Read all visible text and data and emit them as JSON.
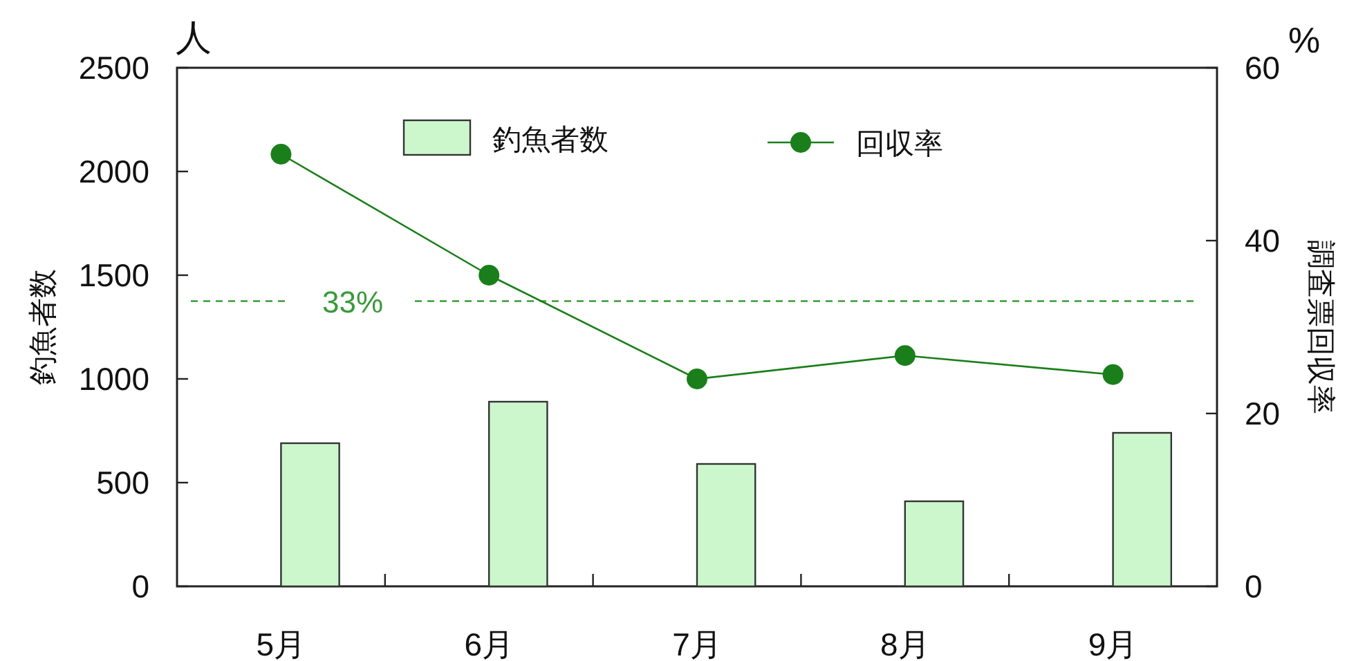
{
  "chart_data": {
    "type": "bar",
    "categories": [
      "5月",
      "6月",
      "7月",
      "8月",
      "9月"
    ],
    "series": [
      {
        "name": "釣魚者数",
        "color": "#ccf7cc",
        "values": [
          690,
          890,
          590,
          410,
          740
        ]
      },
      {
        "name": "回収率",
        "type": "line",
        "axis": "y2",
        "color": "#1a7f1a",
        "values": [
          50,
          36,
          24,
          26.7,
          24.5
        ]
      }
    ],
    "ylabel": "釣魚者数",
    "y2label": "調査票回収率",
    "ylim": [
      0,
      2500
    ],
    "yticks": [
      0,
      500,
      1000,
      1500,
      2000,
      2500
    ],
    "y2lim": [
      0,
      60
    ],
    "y2ticks": [
      0,
      20,
      40,
      60
    ],
    "ref_lines": [
      {
        "axis": "y2",
        "value": 33,
        "label": "33%",
        "color": "#3a9a3a",
        "line_style": "dashed"
      }
    ],
    "annotations": [
      "人",
      "%"
    ],
    "marker": "circle",
    "legend": "top",
    "grid": false
  }
}
